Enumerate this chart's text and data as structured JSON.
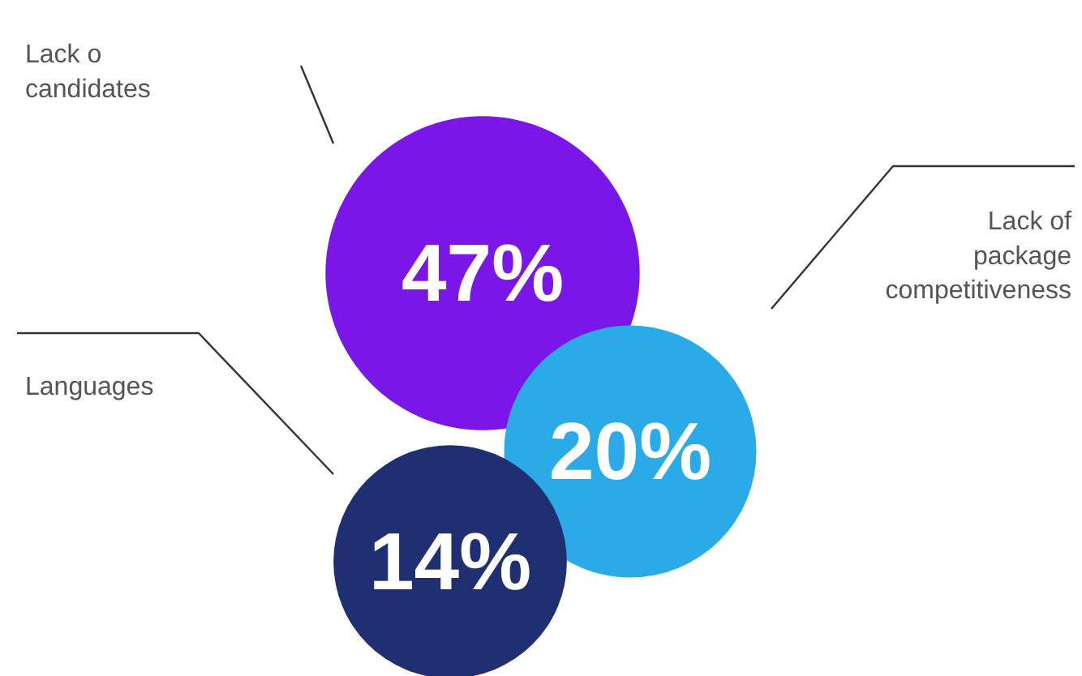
{
  "chart_data": {
    "type": "other",
    "categories": [
      "Lack o\ncandidates",
      "Lack of\npackage\ncompetitiveness",
      "Languages"
    ],
    "values": [
      47,
      20,
      14
    ],
    "value_labels": [
      "47%",
      "20%",
      "14%"
    ],
    "colors": [
      "#7b16e8",
      "#2aaae6",
      "#1f2f72"
    ]
  }
}
